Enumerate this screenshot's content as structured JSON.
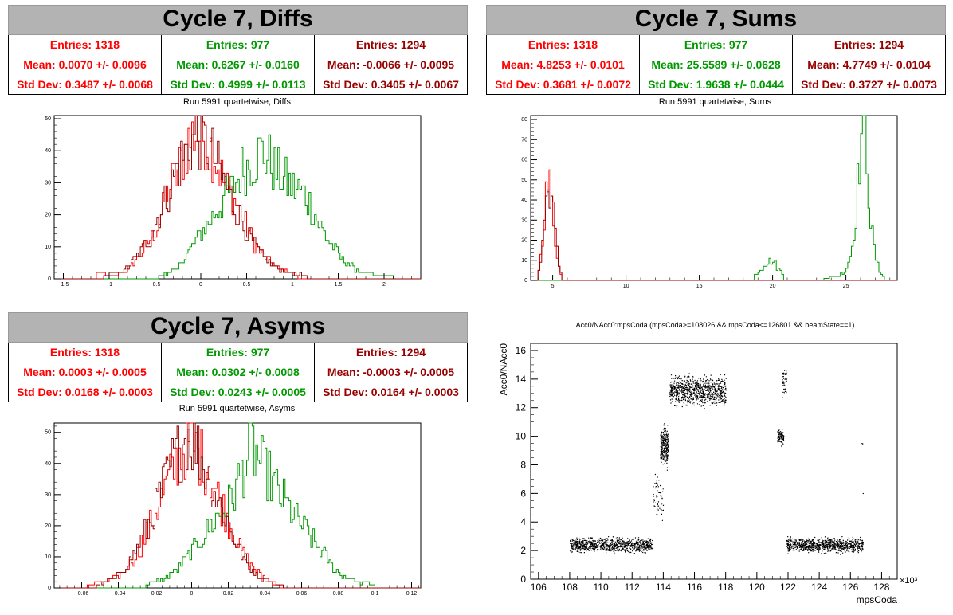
{
  "panels": {
    "diffs": {
      "title": "Cycle 7, Diffs",
      "subtitle": "Run 5991 quartetwise, Diffs",
      "stats": [
        {
          "entries": "Entries: 1318",
          "mean": "Mean: 0.0070 +/- 0.0096",
          "std": "Std Dev: 0.3487 +/- 0.0068",
          "color": "#ff0000"
        },
        {
          "entries": "Entries: 977",
          "mean": "Mean: 0.6267 +/- 0.0160",
          "std": "Std Dev: 0.4999 +/- 0.0113",
          "color": "#009900"
        },
        {
          "entries": "Entries: 1294",
          "mean": "Mean: -0.0066 +/- 0.0095",
          "std": "Std Dev: 0.3405 +/- 0.0067",
          "color": "#990000"
        }
      ]
    },
    "sums": {
      "title": "Cycle 7, Sums",
      "subtitle": "Run 5991 quartetwise, Sums",
      "stats": [
        {
          "entries": "Entries: 1318",
          "mean": "Mean: 4.8253 +/- 0.0101",
          "std": "Std Dev: 0.3681 +/- 0.0072",
          "color": "#ff0000"
        },
        {
          "entries": "Entries: 977",
          "mean": "Mean: 25.5589 +/- 0.0628",
          "std": "Std Dev: 1.9638 +/- 0.0444",
          "color": "#009900"
        },
        {
          "entries": "Entries: 1294",
          "mean": "Mean: 4.7749 +/- 0.0104",
          "std": "Std Dev: 0.3727 +/- 0.0073",
          "color": "#990000"
        }
      ]
    },
    "asyms": {
      "title": "Cycle 7, Asyms",
      "subtitle": "Run 5991 quartetwise, Asyms",
      "stats": [
        {
          "entries": "Entries: 1318",
          "mean": "Mean: 0.0003 +/- 0.0005",
          "std": "Std Dev: 0.0168 +/- 0.0003",
          "color": "#ff0000"
        },
        {
          "entries": "Entries: 977",
          "mean": "Mean: 0.0302 +/- 0.0008",
          "std": "Std Dev: 0.0243 +/- 0.0005",
          "color": "#009900"
        },
        {
          "entries": "Entries: 1294",
          "mean": "Mean: -0.0003 +/- 0.0005",
          "std": "Std Dev: 0.0164 +/- 0.0003",
          "color": "#990000"
        }
      ]
    },
    "scatter": {
      "title": "Acc0/NAcc0:mpsCoda (mpsCoda>=108026 && mpsCoda<=126801 && beamState==1)",
      "xlabel": "mpsCoda",
      "ylabel": "Acc0/NAcc0",
      "exponent": "×10³"
    }
  },
  "chart_data": [
    {
      "type": "histogram",
      "name": "diffs",
      "xlim": [
        -1.6,
        2.4
      ],
      "ylim": [
        0,
        51
      ],
      "xticks": [
        -1.5,
        -1,
        -0.5,
        0,
        0.5,
        1,
        1.5,
        2
      ],
      "xtick_labels": [
        "−1.5",
        "−1",
        "−0.5",
        "0",
        "0.5",
        "1",
        "1.5",
        "2"
      ],
      "yticks": [
        0,
        10,
        20,
        30,
        40,
        50
      ],
      "series": [
        {
          "color": "#ff0000",
          "bins": [
            [
              -1.15,
              2
            ],
            [
              -0.97,
              1
            ],
            [
              -0.85,
              2
            ],
            [
              -0.75,
              4
            ],
            [
              -0.65,
              8
            ],
            [
              -0.55,
              12
            ],
            [
              -0.45,
              18
            ],
            [
              -0.35,
              28
            ],
            [
              -0.25,
              33
            ],
            [
              -0.15,
              42
            ],
            [
              -0.05,
              46
            ],
            [
              0.05,
              44
            ],
            [
              0.15,
              39
            ],
            [
              0.25,
              30
            ],
            [
              0.35,
              26
            ],
            [
              0.45,
              20
            ],
            [
              0.55,
              13
            ],
            [
              0.65,
              8
            ],
            [
              0.75,
              6
            ],
            [
              0.85,
              3
            ],
            [
              0.95,
              2
            ],
            [
              1.05,
              1
            ]
          ]
        },
        {
          "color": "#009900",
          "bins": [
            [
              -0.45,
              1
            ],
            [
              -0.25,
              3
            ],
            [
              -0.15,
              8
            ],
            [
              -0.05,
              12
            ],
            [
              0.05,
              16
            ],
            [
              0.15,
              20
            ],
            [
              0.25,
              25
            ],
            [
              0.35,
              28
            ],
            [
              0.45,
              34
            ],
            [
              0.55,
              36
            ],
            [
              0.65,
              40
            ],
            [
              0.75,
              37
            ],
            [
              0.85,
              33
            ],
            [
              0.95,
              30
            ],
            [
              1.05,
              28
            ],
            [
              1.15,
              26
            ],
            [
              1.25,
              20
            ],
            [
              1.35,
              14
            ],
            [
              1.45,
              10
            ],
            [
              1.55,
              6
            ],
            [
              1.65,
              4
            ],
            [
              1.75,
              2
            ],
            [
              1.95,
              1
            ],
            [
              2.1,
              1
            ]
          ]
        },
        {
          "color": "#990000",
          "bins": [
            [
              -1.05,
              1
            ],
            [
              -0.85,
              2
            ],
            [
              -0.75,
              5
            ],
            [
              -0.65,
              9
            ],
            [
              -0.55,
              13
            ],
            [
              -0.45,
              20
            ],
            [
              -0.35,
              27
            ],
            [
              -0.25,
              35
            ],
            [
              -0.15,
              40
            ],
            [
              -0.05,
              45
            ],
            [
              0.05,
              42
            ],
            [
              0.15,
              38
            ],
            [
              0.25,
              30
            ],
            [
              0.35,
              24
            ],
            [
              0.45,
              18
            ],
            [
              0.55,
              12
            ],
            [
              0.65,
              8
            ],
            [
              0.75,
              5
            ],
            [
              0.85,
              3
            ],
            [
              0.95,
              2
            ],
            [
              1.15,
              1
            ]
          ]
        }
      ]
    },
    {
      "type": "histogram",
      "name": "sums",
      "xlim": [
        3.5,
        28.5
      ],
      "ylim": [
        0,
        82
      ],
      "xticks": [
        5,
        10,
        15,
        20,
        25
      ],
      "xtick_labels": [
        "5",
        "10",
        "15",
        "20",
        "25"
      ],
      "yticks": [
        0,
        10,
        20,
        30,
        40,
        50,
        60,
        70,
        80
      ],
      "series": [
        {
          "color": "#ff0000",
          "bins": [
            [
              4.0,
              3
            ],
            [
              4.2,
              12
            ],
            [
              4.4,
              30
            ],
            [
              4.6,
              45
            ],
            [
              4.8,
              47
            ],
            [
              5.0,
              35
            ],
            [
              5.2,
              20
            ],
            [
              5.4,
              8
            ],
            [
              5.6,
              2
            ]
          ]
        },
        {
          "color": "#009900",
          "bins": [
            [
              18.8,
              3
            ],
            [
              19.2,
              6
            ],
            [
              19.6,
              9
            ],
            [
              20.0,
              10
            ],
            [
              20.4,
              6
            ],
            [
              20.8,
              2
            ],
            [
              23.5,
              1
            ],
            [
              24.5,
              2
            ],
            [
              25.0,
              5
            ],
            [
              25.4,
              15
            ],
            [
              25.7,
              35
            ],
            [
              25.9,
              58
            ],
            [
              26.1,
              75
            ],
            [
              26.3,
              79
            ],
            [
              26.5,
              55
            ],
            [
              26.7,
              28
            ],
            [
              27.0,
              12
            ],
            [
              27.3,
              5
            ],
            [
              27.6,
              2
            ]
          ]
        },
        {
          "color": "#990000",
          "bins": [
            [
              4.0,
              2
            ],
            [
              4.2,
              10
            ],
            [
              4.4,
              28
            ],
            [
              4.6,
              42
            ],
            [
              4.8,
              48
            ],
            [
              5.0,
              38
            ],
            [
              5.2,
              22
            ],
            [
              5.4,
              9
            ],
            [
              5.6,
              3
            ]
          ]
        }
      ]
    },
    {
      "type": "histogram",
      "name": "asyms",
      "xlim": [
        -0.075,
        0.125
      ],
      "ylim": [
        0,
        53
      ],
      "xticks": [
        -0.06,
        -0.04,
        -0.02,
        0,
        0.02,
        0.04,
        0.06,
        0.08,
        0.1,
        0.12
      ],
      "xtick_labels": [
        "−0.06",
        "−0.04",
        "−0.02",
        "0",
        "0.02",
        "0.04",
        "0.06",
        "0.08",
        "0.1",
        "0.12"
      ],
      "yticks": [
        0,
        10,
        20,
        30,
        40,
        50
      ],
      "series": [
        {
          "color": "#ff0000",
          "bins": [
            [
              -0.057,
              1
            ],
            [
              -0.047,
              2
            ],
            [
              -0.042,
              3
            ],
            [
              -0.037,
              5
            ],
            [
              -0.032,
              9
            ],
            [
              -0.027,
              14
            ],
            [
              -0.022,
              21
            ],
            [
              -0.017,
              28
            ],
            [
              -0.012,
              35
            ],
            [
              -0.007,
              42
            ],
            [
              -0.002,
              47
            ],
            [
              0.003,
              44
            ],
            [
              0.008,
              40
            ],
            [
              0.013,
              32
            ],
            [
              0.018,
              25
            ],
            [
              0.023,
              18
            ],
            [
              0.028,
              11
            ],
            [
              0.033,
              7
            ],
            [
              0.038,
              4
            ],
            [
              0.043,
              2
            ],
            [
              0.048,
              1
            ]
          ]
        },
        {
          "color": "#009900",
          "bins": [
            [
              -0.025,
              1
            ],
            [
              -0.015,
              3
            ],
            [
              -0.008,
              6
            ],
            [
              -0.002,
              10
            ],
            [
              0.003,
              14
            ],
            [
              0.008,
              18
            ],
            [
              0.013,
              22
            ],
            [
              0.018,
              25
            ],
            [
              0.023,
              30
            ],
            [
              0.028,
              38
            ],
            [
              0.033,
              45
            ],
            [
              0.038,
              40
            ],
            [
              0.043,
              35
            ],
            [
              0.048,
              30
            ],
            [
              0.053,
              26
            ],
            [
              0.058,
              22
            ],
            [
              0.063,
              18
            ],
            [
              0.068,
              14
            ],
            [
              0.073,
              10
            ],
            [
              0.078,
              6
            ],
            [
              0.083,
              4
            ],
            [
              0.09,
              2
            ],
            [
              0.1,
              1
            ]
          ]
        },
        {
          "color": "#990000",
          "bins": [
            [
              -0.052,
              1
            ],
            [
              -0.042,
              3
            ],
            [
              -0.037,
              6
            ],
            [
              -0.032,
              10
            ],
            [
              -0.027,
              16
            ],
            [
              -0.022,
              22
            ],
            [
              -0.017,
              30
            ],
            [
              -0.012,
              38
            ],
            [
              -0.007,
              44
            ],
            [
              -0.002,
              50
            ],
            [
              0.003,
              45
            ],
            [
              0.008,
              38
            ],
            [
              0.013,
              30
            ],
            [
              0.018,
              24
            ],
            [
              0.023,
              16
            ],
            [
              0.028,
              10
            ],
            [
              0.033,
              6
            ],
            [
              0.038,
              3
            ],
            [
              0.043,
              2
            ],
            [
              0.05,
              1
            ]
          ]
        }
      ]
    },
    {
      "type": "scatter",
      "name": "scatter",
      "title": "Acc0/NAcc0:mpsCoda (mpsCoda>=108026 && mpsCoda<=126801 && beamState==1)",
      "xlabel": "mpsCoda",
      "ylabel": "Acc0/NAcc0",
      "xlim": [
        105.5,
        129.0
      ],
      "ylim": [
        0,
        16.5
      ],
      "xticks": [
        106,
        108,
        110,
        112,
        114,
        116,
        118,
        120,
        122,
        124,
        126,
        128
      ],
      "yticks": [
        0,
        2,
        4,
        6,
        8,
        10,
        12,
        14,
        16
      ],
      "clusters": [
        {
          "x": [
            108.0,
            113.3
          ],
          "y": [
            1.7,
            3.1
          ],
          "density": 900
        },
        {
          "x": [
            113.3,
            114.0
          ],
          "y": [
            3.5,
            8.0
          ],
          "density": 60
        },
        {
          "x": [
            113.8,
            114.3
          ],
          "y": [
            7.4,
            11.3
          ],
          "density": 280
        },
        {
          "x": [
            114.4,
            118.0
          ],
          "y": [
            11.8,
            14.6
          ],
          "density": 800
        },
        {
          "x": [
            121.3,
            121.7
          ],
          "y": [
            9.2,
            10.8
          ],
          "density": 90
        },
        {
          "x": [
            121.6,
            121.9
          ],
          "y": [
            12.2,
            15.3
          ],
          "density": 40
        },
        {
          "x": [
            121.9,
            126.8
          ],
          "y": [
            1.7,
            3.1
          ],
          "density": 900
        },
        {
          "x": [
            126.7,
            126.8
          ],
          "y": [
            9.5,
            9.6
          ],
          "density": 2
        },
        {
          "x": [
            126.7,
            126.8
          ],
          "y": [
            6.0,
            6.1
          ],
          "density": 1
        }
      ]
    }
  ]
}
